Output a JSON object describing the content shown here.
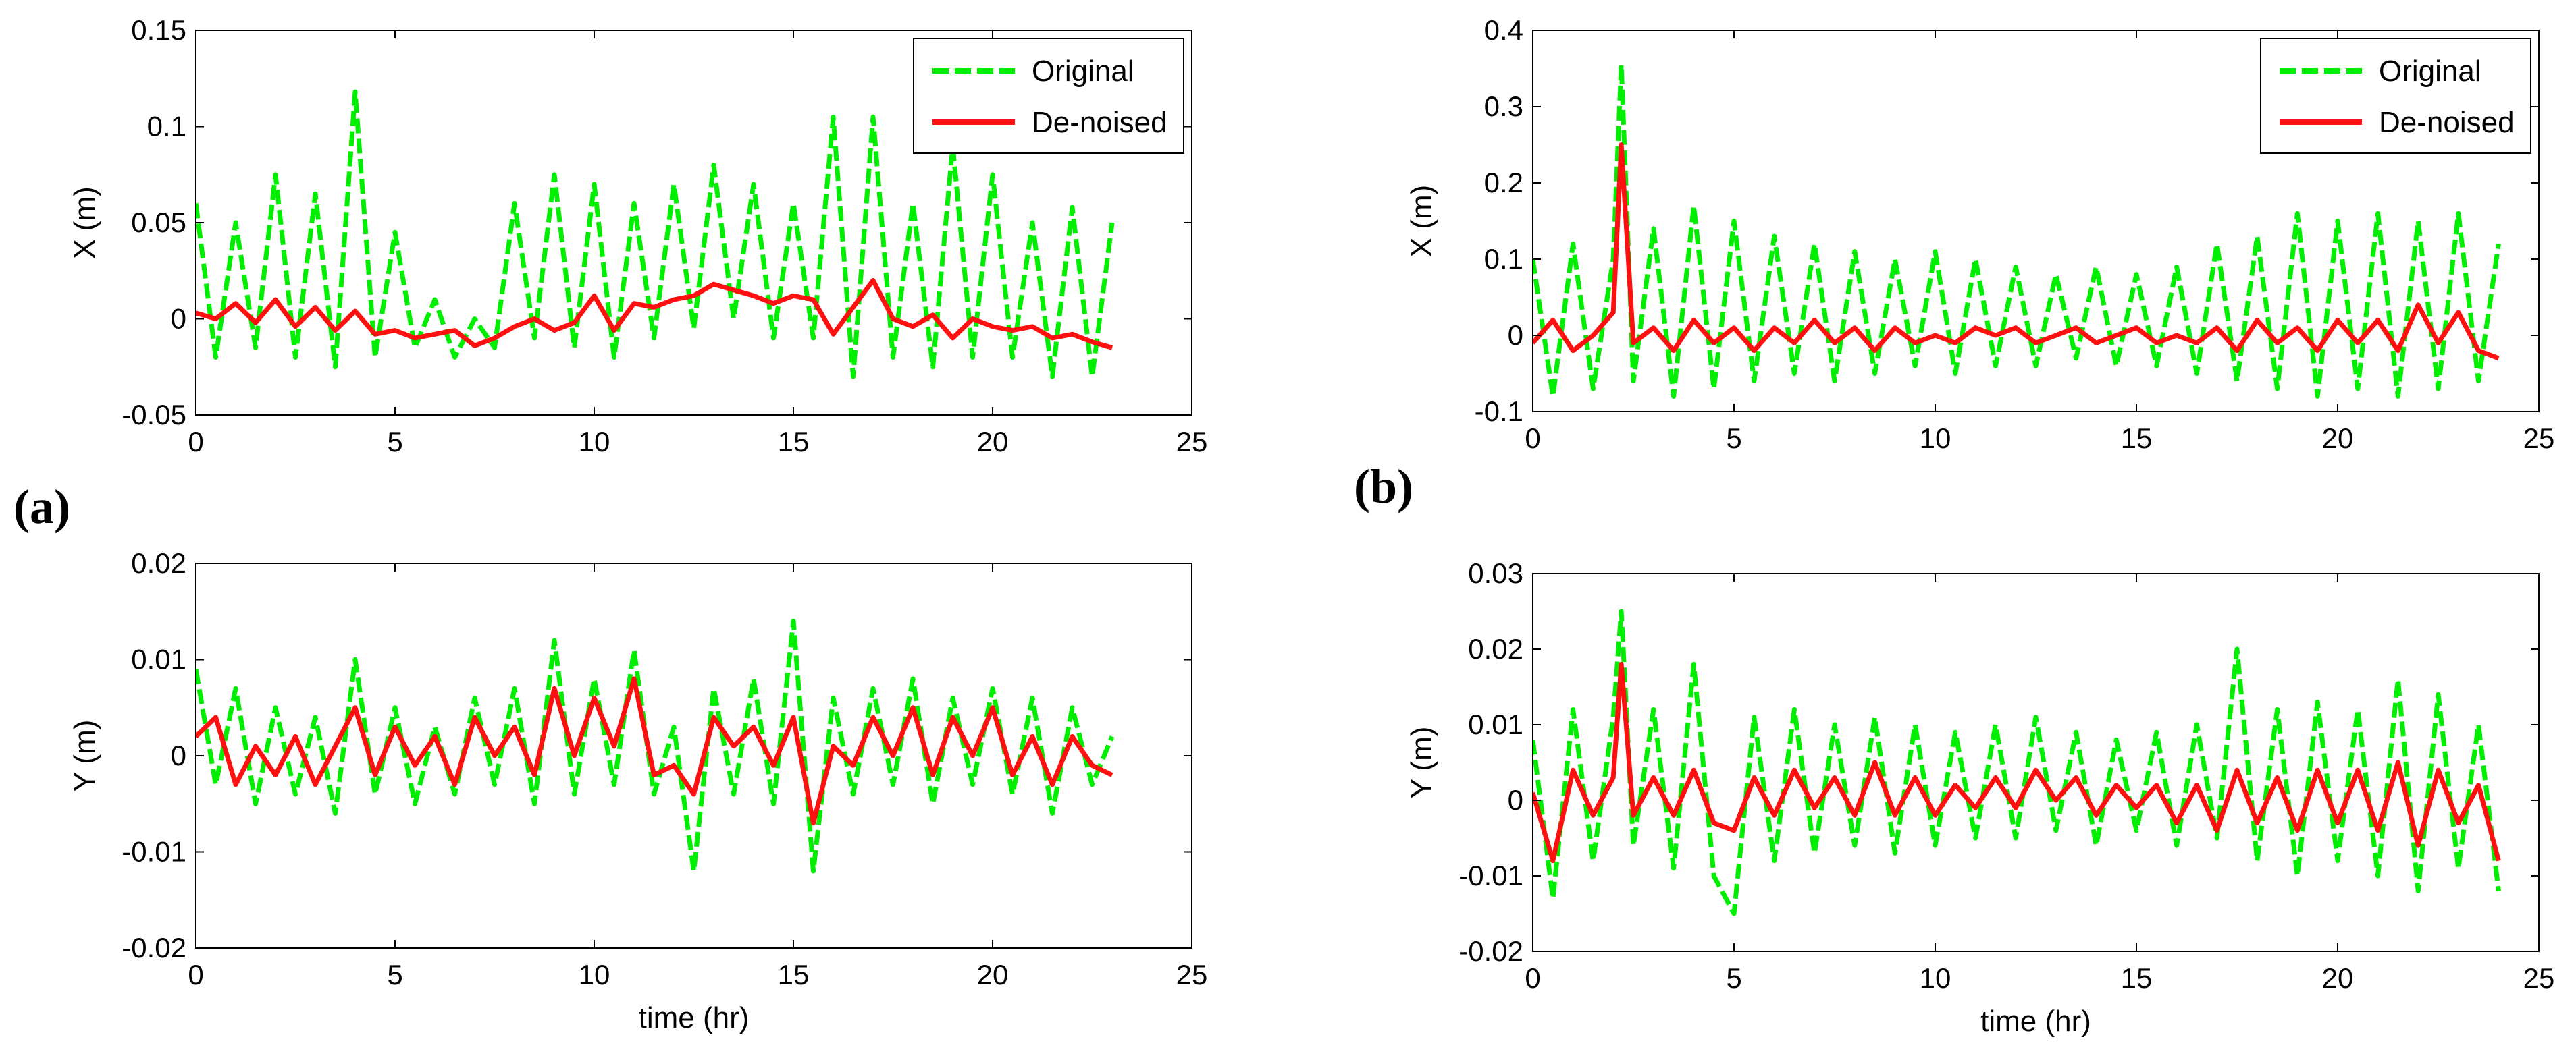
{
  "colors": {
    "original": "#00ee00",
    "denoised": "#ff1010",
    "axes": "#000000",
    "background": "#ffffff"
  },
  "panel_labels": {
    "a": "a",
    "b": "b"
  },
  "chart_data": [
    {
      "id": "a-x",
      "panel": "a",
      "type": "line",
      "title": "",
      "xlabel": "",
      "ylabel": "X (m)",
      "xlim": [
        0,
        25
      ],
      "ylim": [
        -0.05,
        0.15
      ],
      "xticks": [
        0,
        5,
        10,
        15,
        20,
        25
      ],
      "yticks": [
        -0.05,
        0,
        0.05,
        0.1,
        0.15
      ],
      "xtick_labels": [
        "0",
        "5",
        "10",
        "15",
        "20",
        "25"
      ],
      "ytick_labels": [
        "-0.05",
        "0",
        "0.05",
        "0.1",
        "0.15"
      ],
      "legend": {
        "position": "top-right",
        "entries": [
          "Original",
          "De-noised"
        ]
      },
      "series": [
        {
          "name": "Original",
          "style": "dashed",
          "x": [
            0,
            0.5,
            1,
            1.5,
            2,
            2.5,
            3,
            3.5,
            4,
            4.5,
            5,
            5.5,
            6,
            6.5,
            7,
            7.5,
            8,
            8.5,
            9,
            9.5,
            10,
            10.5,
            11,
            11.5,
            12,
            12.5,
            13,
            13.5,
            14,
            14.5,
            15,
            15.5,
            16,
            16.5,
            17,
            17.5,
            18,
            18.5,
            19,
            19.5,
            20,
            20.5,
            21,
            21.5,
            22,
            22.5,
            23
          ],
          "y": [
            0.06,
            -0.02,
            0.05,
            -0.015,
            0.075,
            -0.02,
            0.065,
            -0.025,
            0.118,
            -0.02,
            0.045,
            -0.015,
            0.01,
            -0.02,
            0.0,
            -0.015,
            0.06,
            -0.01,
            0.075,
            -0.015,
            0.07,
            -0.02,
            0.06,
            -0.01,
            0.07,
            -0.005,
            0.08,
            0.0,
            0.07,
            -0.01,
            0.06,
            -0.01,
            0.105,
            -0.03,
            0.105,
            -0.02,
            0.06,
            -0.025,
            0.09,
            -0.02,
            0.075,
            -0.02,
            0.05,
            -0.03,
            0.058,
            -0.03,
            0.05
          ]
        },
        {
          "name": "De-noised",
          "style": "solid",
          "x": [
            0,
            0.5,
            1,
            1.5,
            2,
            2.5,
            3,
            3.5,
            4,
            4.5,
            5,
            5.5,
            6,
            6.5,
            7,
            7.5,
            8,
            8.5,
            9,
            9.5,
            10,
            10.5,
            11,
            11.5,
            12,
            12.5,
            13,
            13.5,
            14,
            14.5,
            15,
            15.5,
            16,
            16.5,
            17,
            17.5,
            18,
            18.5,
            19,
            19.5,
            20,
            20.5,
            21,
            21.5,
            22,
            22.5,
            23
          ],
          "y": [
            0.003,
            0.0,
            0.008,
            -0.002,
            0.01,
            -0.004,
            0.006,
            -0.006,
            0.004,
            -0.008,
            -0.006,
            -0.01,
            -0.008,
            -0.006,
            -0.014,
            -0.01,
            -0.004,
            0.0,
            -0.006,
            -0.002,
            0.012,
            -0.006,
            0.008,
            0.006,
            0.01,
            0.012,
            0.018,
            0.015,
            0.012,
            0.008,
            0.012,
            0.01,
            -0.008,
            0.006,
            0.02,
            0.0,
            -0.004,
            0.002,
            -0.01,
            0.0,
            -0.004,
            -0.006,
            -0.004,
            -0.01,
            -0.008,
            -0.012,
            -0.015
          ]
        }
      ]
    },
    {
      "id": "a-y",
      "panel": "a",
      "type": "line",
      "title": "",
      "xlabel": "time (hr)",
      "ylabel": "Y (m)",
      "xlim": [
        0,
        25
      ],
      "ylim": [
        -0.02,
        0.02
      ],
      "xticks": [
        0,
        5,
        10,
        15,
        20,
        25
      ],
      "yticks": [
        -0.02,
        -0.01,
        0,
        0.01,
        0.02
      ],
      "xtick_labels": [
        "0",
        "5",
        "10",
        "15",
        "20",
        "25"
      ],
      "ytick_labels": [
        "-0.02",
        "-0.01",
        "0",
        "0.01",
        "0.02"
      ],
      "legend": null,
      "series": [
        {
          "name": "Original",
          "style": "dashed",
          "x": [
            0,
            0.5,
            1,
            1.5,
            2,
            2.5,
            3,
            3.5,
            4,
            4.5,
            5,
            5.5,
            6,
            6.5,
            7,
            7.5,
            8,
            8.5,
            9,
            9.5,
            10,
            10.5,
            11,
            11.5,
            12,
            12.5,
            13,
            13.5,
            14,
            14.5,
            15,
            15.5,
            16,
            16.5,
            17,
            17.5,
            18,
            18.5,
            19,
            19.5,
            20,
            20.5,
            21,
            21.5,
            22,
            22.5,
            23
          ],
          "y": [
            0.009,
            -0.003,
            0.007,
            -0.005,
            0.005,
            -0.004,
            0.004,
            -0.006,
            0.01,
            -0.004,
            0.005,
            -0.005,
            0.003,
            -0.004,
            0.006,
            -0.003,
            0.007,
            -0.005,
            0.012,
            -0.004,
            0.008,
            -0.003,
            0.011,
            -0.004,
            0.003,
            -0.012,
            0.007,
            -0.004,
            0.008,
            -0.005,
            0.014,
            -0.012,
            0.006,
            -0.004,
            0.007,
            -0.003,
            0.008,
            -0.005,
            0.006,
            -0.003,
            0.007,
            -0.004,
            0.006,
            -0.006,
            0.005,
            -0.003,
            0.002
          ]
        },
        {
          "name": "De-noised",
          "style": "solid",
          "x": [
            0,
            0.5,
            1,
            1.5,
            2,
            2.5,
            3,
            3.5,
            4,
            4.5,
            5,
            5.5,
            6,
            6.5,
            7,
            7.5,
            8,
            8.5,
            9,
            9.5,
            10,
            10.5,
            11,
            11.5,
            12,
            12.5,
            13,
            13.5,
            14,
            14.5,
            15,
            15.5,
            16,
            16.5,
            17,
            17.5,
            18,
            18.5,
            19,
            19.5,
            20,
            20.5,
            21,
            21.5,
            22,
            22.5,
            23
          ],
          "y": [
            0.002,
            0.004,
            -0.003,
            0.001,
            -0.002,
            0.002,
            -0.003,
            0.001,
            0.005,
            -0.002,
            0.003,
            -0.001,
            0.002,
            -0.003,
            0.004,
            0.0,
            0.003,
            -0.002,
            0.007,
            0.0,
            0.006,
            0.001,
            0.008,
            -0.002,
            -0.001,
            -0.004,
            0.004,
            0.001,
            0.003,
            -0.001,
            0.004,
            -0.007,
            0.001,
            -0.001,
            0.004,
            0.0,
            0.005,
            -0.002,
            0.004,
            0.0,
            0.005,
            -0.002,
            0.002,
            -0.003,
            0.002,
            -0.001,
            -0.002
          ]
        }
      ]
    },
    {
      "id": "b-x",
      "panel": "b",
      "type": "line",
      "title": "",
      "xlabel": "",
      "ylabel": "X (m)",
      "xlim": [
        0,
        25
      ],
      "ylim": [
        -0.1,
        0.4
      ],
      "xticks": [
        0,
        5,
        10,
        15,
        20,
        25
      ],
      "yticks": [
        -0.1,
        0,
        0.1,
        0.2,
        0.3,
        0.4
      ],
      "xtick_labels": [
        "0",
        "5",
        "10",
        "15",
        "20",
        "25"
      ],
      "ytick_labels": [
        "-0.1",
        "0",
        "0.1",
        "0.2",
        "0.3",
        "0.4"
      ],
      "legend": {
        "position": "top-right",
        "entries": [
          "Original",
          "De-noised"
        ]
      },
      "series": [
        {
          "name": "Original",
          "style": "dashed",
          "x": [
            0,
            0.5,
            1,
            1.5,
            2,
            2.2,
            2.5,
            3,
            3.5,
            4,
            4.5,
            5,
            5.5,
            6,
            6.5,
            7,
            7.5,
            8,
            8.5,
            9,
            9.5,
            10,
            10.5,
            11,
            11.5,
            12,
            12.5,
            13,
            13.5,
            14,
            14.5,
            15,
            15.5,
            16,
            16.5,
            17,
            17.5,
            18,
            18.5,
            19,
            19.5,
            20,
            20.5,
            21,
            21.5,
            22,
            22.5,
            23,
            23.5,
            24
          ],
          "y": [
            0.1,
            -0.08,
            0.12,
            -0.07,
            0.1,
            0.355,
            -0.06,
            0.14,
            -0.08,
            0.17,
            -0.07,
            0.15,
            -0.06,
            0.13,
            -0.05,
            0.12,
            -0.06,
            0.11,
            -0.05,
            0.1,
            -0.04,
            0.11,
            -0.05,
            0.1,
            -0.04,
            0.09,
            -0.04,
            0.08,
            -0.03,
            0.09,
            -0.04,
            0.08,
            -0.04,
            0.09,
            -0.05,
            0.12,
            -0.06,
            0.13,
            -0.07,
            0.16,
            -0.08,
            0.15,
            -0.07,
            0.16,
            -0.08,
            0.15,
            -0.07,
            0.16,
            -0.06,
            0.12
          ]
        },
        {
          "name": "De-noised",
          "style": "solid",
          "x": [
            0,
            0.5,
            1,
            1.5,
            2,
            2.2,
            2.5,
            3,
            3.5,
            4,
            4.5,
            5,
            5.5,
            6,
            6.5,
            7,
            7.5,
            8,
            8.5,
            9,
            9.5,
            10,
            10.5,
            11,
            11.5,
            12,
            12.5,
            13,
            13.5,
            14,
            14.5,
            15,
            15.5,
            16,
            16.5,
            17,
            17.5,
            18,
            18.5,
            19,
            19.5,
            20,
            20.5,
            21,
            21.5,
            22,
            22.5,
            23,
            23.5,
            24
          ],
          "y": [
            -0.01,
            0.02,
            -0.02,
            0.0,
            0.03,
            0.25,
            -0.01,
            0.01,
            -0.02,
            0.02,
            -0.01,
            0.01,
            -0.02,
            0.01,
            -0.01,
            0.02,
            -0.01,
            0.01,
            -0.02,
            0.01,
            -0.01,
            0.0,
            -0.01,
            0.01,
            0.0,
            0.01,
            -0.01,
            0.0,
            0.01,
            -0.01,
            0.0,
            0.01,
            -0.01,
            0.0,
            -0.01,
            0.01,
            -0.02,
            0.02,
            -0.01,
            0.01,
            -0.02,
            0.02,
            -0.01,
            0.02,
            -0.02,
            0.04,
            -0.01,
            0.03,
            -0.02,
            -0.03
          ]
        }
      ]
    },
    {
      "id": "b-y",
      "panel": "b",
      "type": "line",
      "title": "",
      "xlabel": "time (hr)",
      "ylabel": "Y (m)",
      "xlim": [
        0,
        25
      ],
      "ylim": [
        -0.02,
        0.03
      ],
      "xticks": [
        0,
        5,
        10,
        15,
        20,
        25
      ],
      "yticks": [
        -0.02,
        -0.01,
        0,
        0.01,
        0.02,
        0.03
      ],
      "xtick_labels": [
        "0",
        "5",
        "10",
        "15",
        "20",
        "25"
      ],
      "ytick_labels": [
        "-0.02",
        "-0.01",
        "0",
        "0.01",
        "0.02",
        "0.03"
      ],
      "legend": null,
      "series": [
        {
          "name": "Original",
          "style": "dashed",
          "x": [
            0,
            0.5,
            1,
            1.5,
            2,
            2.2,
            2.5,
            3,
            3.5,
            4,
            4.5,
            5,
            5.5,
            6,
            6.5,
            7,
            7.5,
            8,
            8.5,
            9,
            9.5,
            10,
            10.5,
            11,
            11.5,
            12,
            12.5,
            13,
            13.5,
            14,
            14.5,
            15,
            15.5,
            16,
            16.5,
            17,
            17.5,
            18,
            18.5,
            19,
            19.5,
            20,
            20.5,
            21,
            21.5,
            22,
            22.5,
            23,
            23.5,
            24
          ],
          "y": [
            0.008,
            -0.013,
            0.012,
            -0.008,
            0.011,
            0.025,
            -0.006,
            0.012,
            -0.009,
            0.018,
            -0.01,
            -0.015,
            0.011,
            -0.008,
            0.012,
            -0.007,
            0.01,
            -0.006,
            0.011,
            -0.007,
            0.01,
            -0.006,
            0.009,
            -0.005,
            0.01,
            -0.005,
            0.011,
            -0.004,
            0.009,
            -0.006,
            0.008,
            -0.004,
            0.009,
            -0.006,
            0.01,
            -0.005,
            0.02,
            -0.008,
            0.012,
            -0.01,
            0.013,
            -0.008,
            0.012,
            -0.01,
            0.016,
            -0.012,
            0.014,
            -0.009,
            0.01,
            -0.012
          ]
        },
        {
          "name": "De-noised",
          "style": "solid",
          "x": [
            0,
            0.5,
            1,
            1.5,
            2,
            2.2,
            2.5,
            3,
            3.5,
            4,
            4.5,
            5,
            5.5,
            6,
            6.5,
            7,
            7.5,
            8,
            8.5,
            9,
            9.5,
            10,
            10.5,
            11,
            11.5,
            12,
            12.5,
            13,
            13.5,
            14,
            14.5,
            15,
            15.5,
            16,
            16.5,
            17,
            17.5,
            18,
            18.5,
            19,
            19.5,
            20,
            20.5,
            21,
            21.5,
            22,
            22.5,
            23,
            23.5,
            24
          ],
          "y": [
            0.001,
            -0.008,
            0.004,
            -0.002,
            0.003,
            0.018,
            -0.002,
            0.003,
            -0.002,
            0.004,
            -0.003,
            -0.004,
            0.003,
            -0.002,
            0.004,
            -0.001,
            0.003,
            -0.002,
            0.005,
            -0.002,
            0.003,
            -0.002,
            0.002,
            -0.001,
            0.003,
            -0.001,
            0.004,
            0.0,
            0.003,
            -0.002,
            0.002,
            -0.001,
            0.002,
            -0.003,
            0.002,
            -0.004,
            0.004,
            -0.003,
            0.003,
            -0.004,
            0.004,
            -0.003,
            0.004,
            -0.004,
            0.005,
            -0.006,
            0.004,
            -0.003,
            0.002,
            -0.008
          ]
        }
      ]
    }
  ]
}
